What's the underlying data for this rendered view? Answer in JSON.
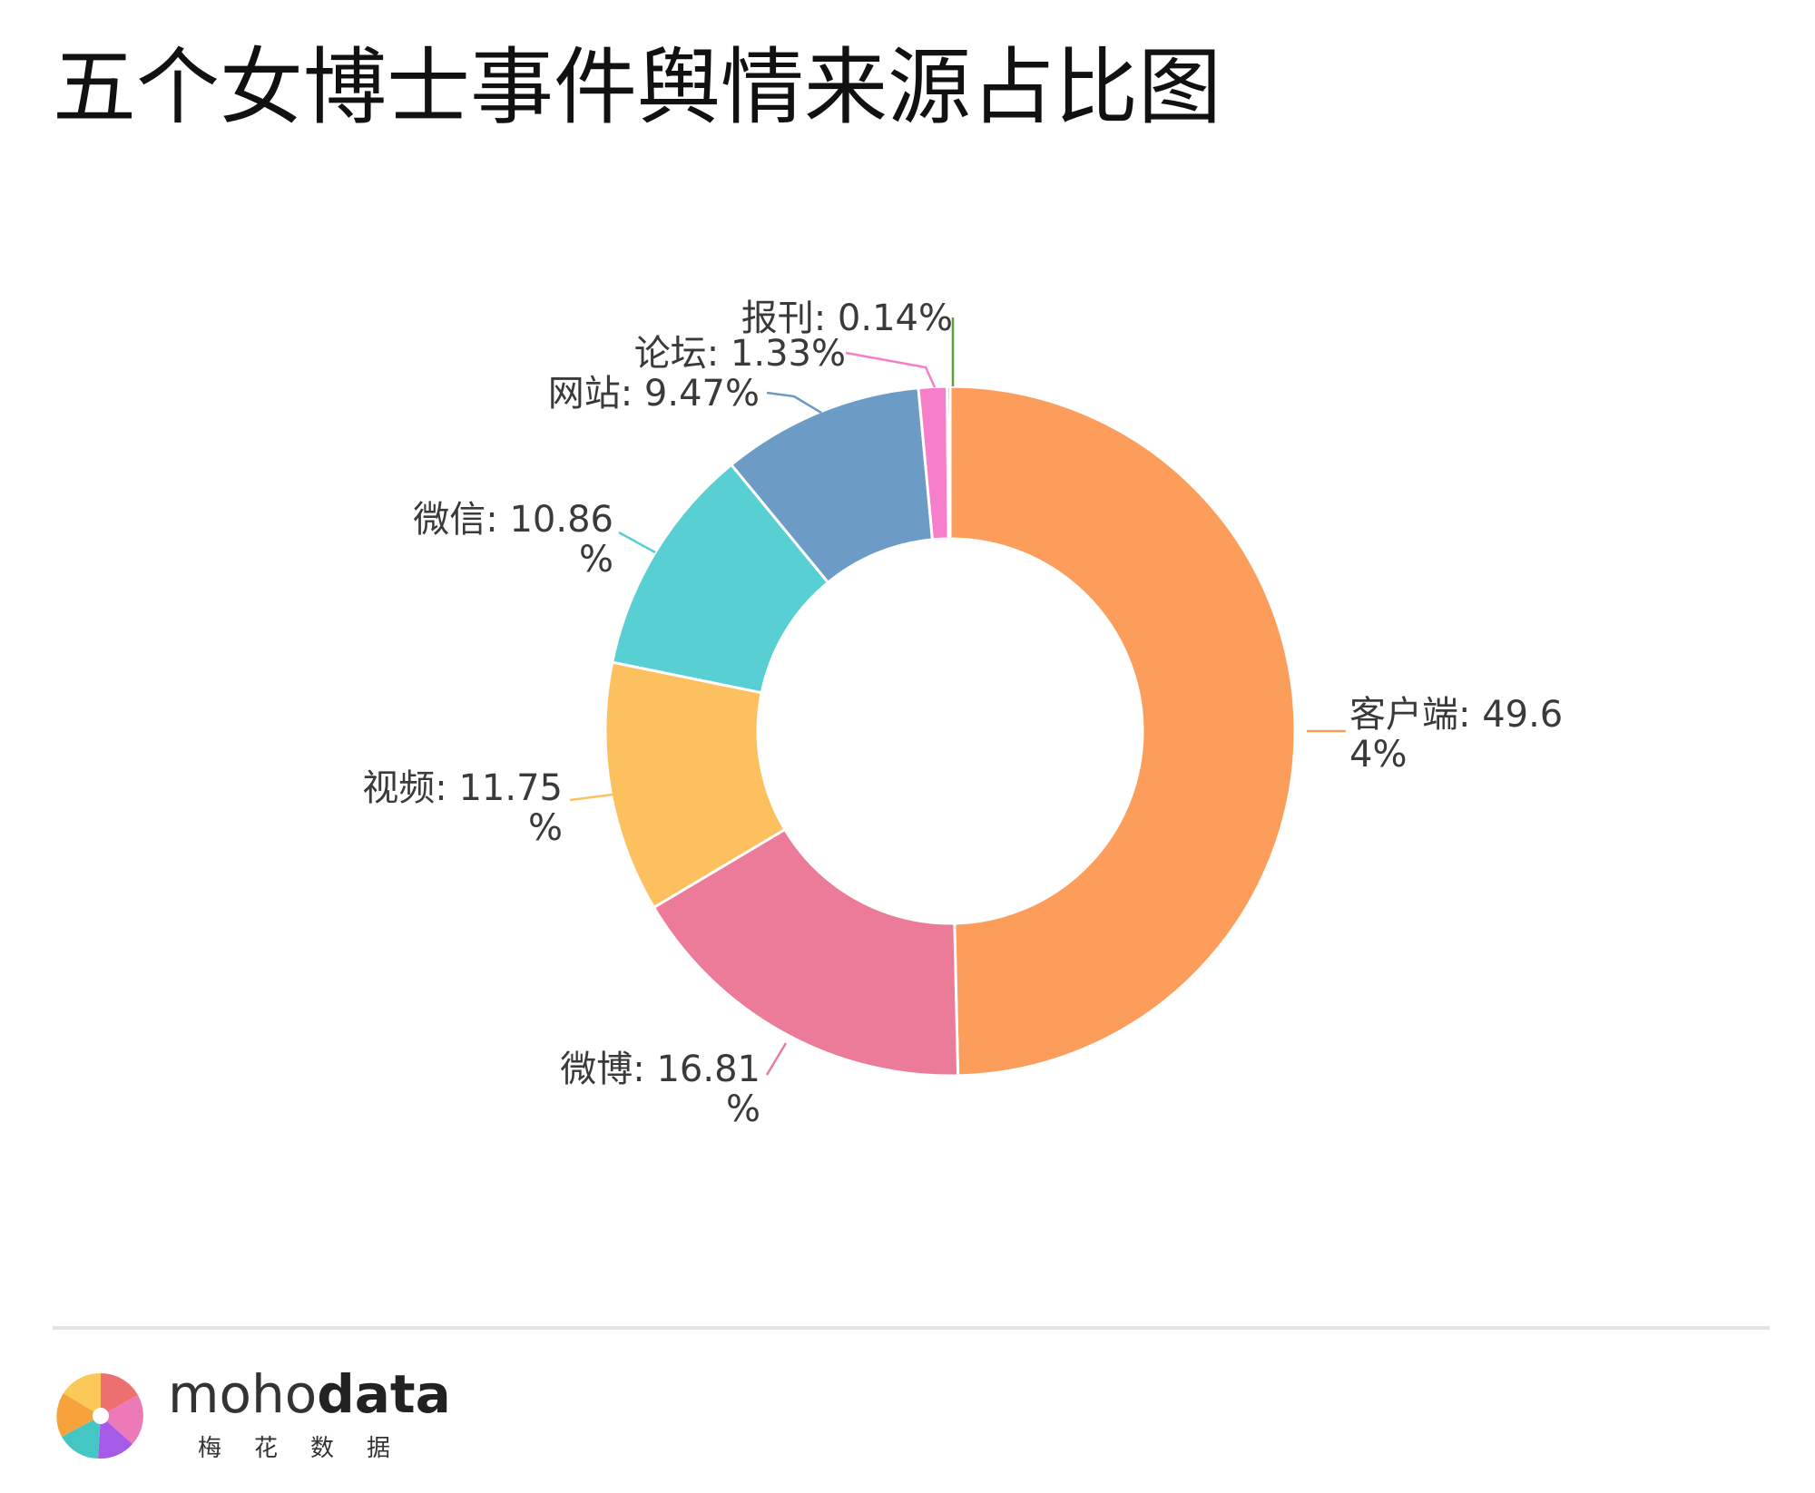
{
  "title": "五个女博士事件舆情来源占比图",
  "chart_data": {
    "type": "pie",
    "variant": "donut",
    "categories": [
      "客户端",
      "微博",
      "视频",
      "微信",
      "网站",
      "论坛",
      "报刊"
    ],
    "values": [
      49.64,
      16.81,
      11.75,
      10.86,
      9.47,
      1.33,
      0.14
    ],
    "unit": "%",
    "label_lines": [
      [
        "客户端: 49.6",
        "4%"
      ],
      [
        "微博: 16.81",
        "%"
      ],
      [
        "视频: 11.75",
        "%"
      ],
      [
        "微信: 10.86",
        "%"
      ],
      [
        "网站: 9.47%"
      ],
      [
        "论坛: 1.33%"
      ],
      [
        "报刊: 0.14%"
      ]
    ],
    "colors": [
      "#FD9D5C",
      "#EC7A99",
      "#FDC05F",
      "#58CFD2",
      "#6C9CC6",
      "#F77ECB",
      "#5E9F3A"
    ],
    "start": "top",
    "direction": "clockwise",
    "legend": "none"
  },
  "footer": {
    "brand_light": "moho",
    "brand_bold": "data",
    "brand_sub": "梅花数据"
  }
}
